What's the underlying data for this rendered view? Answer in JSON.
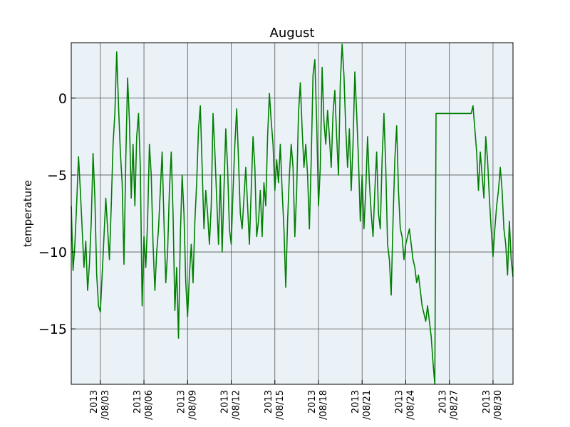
{
  "chart_data": {
    "type": "line",
    "title": "August",
    "xlabel": "",
    "ylabel": "temperature",
    "xlim": [
      "2013-08-01T00:00",
      "2013-08-31T09:00"
    ],
    "ylim": [
      -18.6,
      3.6
    ],
    "yticks": [
      0,
      -5,
      -10,
      -15
    ],
    "ytick_labels": [
      "0",
      "−5",
      "−10",
      "−15"
    ],
    "xticks": [
      "2013-08-03",
      "2013-08-06",
      "2013-08-09",
      "2013-08-12",
      "2013-08-15",
      "2013-08-18",
      "2013-08-21",
      "2013-08-24",
      "2013-08-27",
      "2013-08-30"
    ],
    "xtick_labels": [
      [
        "2013",
        "/08/03"
      ],
      [
        "2013",
        "/08/06"
      ],
      [
        "2013",
        "/08/09"
      ],
      [
        "2013",
        "/08/12"
      ],
      [
        "2013",
        "/08/15"
      ],
      [
        "2013",
        "/08/18"
      ],
      [
        "2013",
        "/08/21"
      ],
      [
        "2013",
        "/08/24"
      ],
      [
        "2013",
        "/08/27"
      ],
      [
        "2013",
        "/08/30"
      ]
    ],
    "grid": true,
    "background_color": "#eaf2f8",
    "series": [
      {
        "color": "#007f00",
        "points": [
          [
            "2013-08-01T00:00",
            -7.0
          ],
          [
            "2013-08-01T03:00",
            -11.2
          ],
          [
            "2013-08-01T06:00",
            -9.5
          ],
          [
            "2013-08-01T09:00",
            -6.8
          ],
          [
            "2013-08-01T12:00",
            -3.8
          ],
          [
            "2013-08-01T15:00",
            -6.0
          ],
          [
            "2013-08-01T18:00",
            -8.5
          ],
          [
            "2013-08-01T21:00",
            -11.0
          ],
          [
            "2013-08-02T00:00",
            -9.3
          ],
          [
            "2013-08-02T03:00",
            -12.5
          ],
          [
            "2013-08-02T06:00",
            -10.8
          ],
          [
            "2013-08-02T09:00",
            -8.0
          ],
          [
            "2013-08-02T12:00",
            -3.6
          ],
          [
            "2013-08-02T15:00",
            -6.5
          ],
          [
            "2013-08-02T18:00",
            -11.5
          ],
          [
            "2013-08-02T21:00",
            -13.5
          ],
          [
            "2013-08-03T00:00",
            -13.9
          ],
          [
            "2013-08-03T03:00",
            -11.5
          ],
          [
            "2013-08-03T06:00",
            -9.0
          ],
          [
            "2013-08-03T09:00",
            -6.5
          ],
          [
            "2013-08-03T12:00",
            -8.5
          ],
          [
            "2013-08-03T15:00",
            -10.5
          ],
          [
            "2013-08-03T18:00",
            -7.0
          ],
          [
            "2013-08-03T21:00",
            -3.0
          ],
          [
            "2013-08-04T00:00",
            -1.0
          ],
          [
            "2013-08-04T03:00",
            3.0
          ],
          [
            "2013-08-04T06:00",
            -0.5
          ],
          [
            "2013-08-04T09:00",
            -3.5
          ],
          [
            "2013-08-04T12:00",
            -5.5
          ],
          [
            "2013-08-04T15:00",
            -10.8
          ],
          [
            "2013-08-04T18:00",
            -4.0
          ],
          [
            "2013-08-04T21:00",
            1.3
          ],
          [
            "2013-08-05T00:00",
            -1.5
          ],
          [
            "2013-08-05T03:00",
            -6.5
          ],
          [
            "2013-08-05T06:00",
            -3.0
          ],
          [
            "2013-08-05T09:00",
            -7.0
          ],
          [
            "2013-08-05T12:00",
            -2.5
          ],
          [
            "2013-08-05T15:00",
            -1.0
          ],
          [
            "2013-08-05T18:00",
            -4.5
          ],
          [
            "2013-08-05T21:00",
            -13.5
          ],
          [
            "2013-08-06T00:00",
            -9.0
          ],
          [
            "2013-08-06T03:00",
            -11.0
          ],
          [
            "2013-08-06T06:00",
            -8.0
          ],
          [
            "2013-08-06T09:00",
            -3.0
          ],
          [
            "2013-08-06T12:00",
            -5.0
          ],
          [
            "2013-08-06T15:00",
            -9.5
          ],
          [
            "2013-08-06T18:00",
            -12.5
          ],
          [
            "2013-08-06T21:00",
            -10.0
          ],
          [
            "2013-08-07T00:00",
            -8.5
          ],
          [
            "2013-08-07T03:00",
            -6.0
          ],
          [
            "2013-08-07T06:00",
            -3.5
          ],
          [
            "2013-08-07T09:00",
            -8.0
          ],
          [
            "2013-08-07T12:00",
            -12.0
          ],
          [
            "2013-08-07T15:00",
            -10.0
          ],
          [
            "2013-08-07T18:00",
            -6.0
          ],
          [
            "2013-08-07T21:00",
            -3.5
          ],
          [
            "2013-08-08T00:00",
            -7.5
          ],
          [
            "2013-08-08T03:00",
            -13.8
          ],
          [
            "2013-08-08T06:00",
            -11.0
          ],
          [
            "2013-08-08T09:00",
            -15.6
          ],
          [
            "2013-08-08T12:00",
            -9.0
          ],
          [
            "2013-08-08T15:00",
            -5.0
          ],
          [
            "2013-08-08T18:00",
            -7.5
          ],
          [
            "2013-08-08T21:00",
            -12.0
          ],
          [
            "2013-08-09T00:00",
            -14.2
          ],
          [
            "2013-08-09T03:00",
            -11.5
          ],
          [
            "2013-08-09T06:00",
            -9.5
          ],
          [
            "2013-08-09T09:00",
            -12.0
          ],
          [
            "2013-08-09T12:00",
            -8.0
          ],
          [
            "2013-08-09T15:00",
            -5.5
          ],
          [
            "2013-08-09T18:00",
            -2.0
          ],
          [
            "2013-08-09T21:00",
            -0.5
          ],
          [
            "2013-08-10T00:00",
            -4.5
          ],
          [
            "2013-08-10T03:00",
            -8.5
          ],
          [
            "2013-08-10T06:00",
            -6.0
          ],
          [
            "2013-08-10T09:00",
            -7.5
          ],
          [
            "2013-08-10T12:00",
            -9.5
          ],
          [
            "2013-08-10T15:00",
            -7.0
          ],
          [
            "2013-08-10T18:00",
            -1.0
          ],
          [
            "2013-08-10T21:00",
            -3.5
          ],
          [
            "2013-08-11T00:00",
            -6.5
          ],
          [
            "2013-08-11T03:00",
            -9.5
          ],
          [
            "2013-08-11T06:00",
            -5.0
          ],
          [
            "2013-08-11T09:00",
            -10.0
          ],
          [
            "2013-08-11T12:00",
            -6.0
          ],
          [
            "2013-08-11T15:00",
            -2.0
          ],
          [
            "2013-08-11T18:00",
            -4.5
          ],
          [
            "2013-08-11T21:00",
            -8.5
          ],
          [
            "2013-08-12T00:00",
            -9.5
          ],
          [
            "2013-08-12T03:00",
            -6.0
          ],
          [
            "2013-08-12T06:00",
            -3.0
          ],
          [
            "2013-08-12T09:00",
            -0.7
          ],
          [
            "2013-08-12T12:00",
            -4.0
          ],
          [
            "2013-08-12T15:00",
            -7.5
          ],
          [
            "2013-08-12T18:00",
            -8.5
          ],
          [
            "2013-08-12T21:00",
            -6.5
          ],
          [
            "2013-08-13T00:00",
            -4.5
          ],
          [
            "2013-08-13T03:00",
            -7.0
          ],
          [
            "2013-08-13T06:00",
            -9.5
          ],
          [
            "2013-08-13T09:00",
            -6.0
          ],
          [
            "2013-08-13T12:00",
            -2.5
          ],
          [
            "2013-08-13T15:00",
            -4.5
          ],
          [
            "2013-08-13T18:00",
            -9.0
          ],
          [
            "2013-08-13T21:00",
            -8.0
          ],
          [
            "2013-08-14T00:00",
            -6.0
          ],
          [
            "2013-08-14T03:00",
            -9.0
          ],
          [
            "2013-08-14T06:00",
            -5.5
          ],
          [
            "2013-08-14T09:00",
            -7.0
          ],
          [
            "2013-08-14T12:00",
            -2.5
          ],
          [
            "2013-08-14T15:00",
            0.3
          ],
          [
            "2013-08-14T18:00",
            -1.5
          ],
          [
            "2013-08-14T21:00",
            -3.0
          ],
          [
            "2013-08-15T00:00",
            -6.0
          ],
          [
            "2013-08-15T03:00",
            -4.0
          ],
          [
            "2013-08-15T06:00",
            -5.5
          ],
          [
            "2013-08-15T09:00",
            -3.0
          ],
          [
            "2013-08-15T12:00",
            -6.0
          ],
          [
            "2013-08-15T15:00",
            -8.5
          ],
          [
            "2013-08-15T18:00",
            -12.3
          ],
          [
            "2013-08-15T21:00",
            -8.0
          ],
          [
            "2013-08-16T00:00",
            -5.0
          ],
          [
            "2013-08-16T03:00",
            -3.0
          ],
          [
            "2013-08-16T06:00",
            -4.5
          ],
          [
            "2013-08-16T09:00",
            -9.0
          ],
          [
            "2013-08-16T12:00",
            -6.0
          ],
          [
            "2013-08-16T15:00",
            -1.0
          ],
          [
            "2013-08-16T18:00",
            1.0
          ],
          [
            "2013-08-16T21:00",
            -2.0
          ],
          [
            "2013-08-17T00:00",
            -4.5
          ],
          [
            "2013-08-17T03:00",
            -3.0
          ],
          [
            "2013-08-17T06:00",
            -5.0
          ],
          [
            "2013-08-17T09:00",
            -8.5
          ],
          [
            "2013-08-17T12:00",
            -4.0
          ],
          [
            "2013-08-17T15:00",
            1.5
          ],
          [
            "2013-08-17T18:00",
            2.5
          ],
          [
            "2013-08-17T21:00",
            -1.5
          ],
          [
            "2013-08-18T00:00",
            -7.0
          ],
          [
            "2013-08-18T03:00",
            -4.5
          ],
          [
            "2013-08-18T06:00",
            2.0
          ],
          [
            "2013-08-18T09:00",
            -1.5
          ],
          [
            "2013-08-18T12:00",
            -3.0
          ],
          [
            "2013-08-18T15:00",
            -0.8
          ],
          [
            "2013-08-18T18:00",
            -2.5
          ],
          [
            "2013-08-18T21:00",
            -4.5
          ],
          [
            "2013-08-19T00:00",
            -1.0
          ],
          [
            "2013-08-19T03:00",
            0.5
          ],
          [
            "2013-08-19T06:00",
            -2.5
          ],
          [
            "2013-08-19T09:00",
            -5.0
          ],
          [
            "2013-08-19T12:00",
            1.0
          ],
          [
            "2013-08-19T15:00",
            3.5
          ],
          [
            "2013-08-19T18:00",
            1.5
          ],
          [
            "2013-08-19T21:00",
            -2.0
          ],
          [
            "2013-08-20T00:00",
            -4.5
          ],
          [
            "2013-08-20T03:00",
            -2.0
          ],
          [
            "2013-08-20T06:00",
            -6.0
          ],
          [
            "2013-08-20T09:00",
            -3.0
          ],
          [
            "2013-08-20T12:00",
            1.7
          ],
          [
            "2013-08-20T15:00",
            -1.0
          ],
          [
            "2013-08-20T18:00",
            -4.0
          ],
          [
            "2013-08-20T21:00",
            -8.0
          ],
          [
            "2013-08-21T00:00",
            -5.0
          ],
          [
            "2013-08-21T03:00",
            -8.5
          ],
          [
            "2013-08-21T06:00",
            -6.0
          ],
          [
            "2013-08-21T09:00",
            -2.5
          ],
          [
            "2013-08-21T12:00",
            -5.5
          ],
          [
            "2013-08-21T15:00",
            -7.5
          ],
          [
            "2013-08-21T18:00",
            -9.0
          ],
          [
            "2013-08-21T21:00",
            -6.0
          ],
          [
            "2013-08-22T00:00",
            -3.5
          ],
          [
            "2013-08-22T03:00",
            -7.5
          ],
          [
            "2013-08-22T06:00",
            -8.5
          ],
          [
            "2013-08-22T09:00",
            -4.0
          ],
          [
            "2013-08-22T12:00",
            -1.0
          ],
          [
            "2013-08-22T15:00",
            -4.5
          ],
          [
            "2013-08-22T18:00",
            -9.5
          ],
          [
            "2013-08-22T21:00",
            -10.5
          ],
          [
            "2013-08-23T00:00",
            -12.8
          ],
          [
            "2013-08-23T03:00",
            -8.0
          ],
          [
            "2013-08-23T06:00",
            -4.0
          ],
          [
            "2013-08-23T09:00",
            -1.8
          ],
          [
            "2013-08-23T12:00",
            -6.0
          ],
          [
            "2013-08-23T15:00",
            -8.5
          ],
          [
            "2013-08-23T18:00",
            -9.0
          ],
          [
            "2013-08-23T21:00",
            -10.5
          ],
          [
            "2013-08-24T00:00",
            -9.5
          ],
          [
            "2013-08-24T03:00",
            -9.0
          ],
          [
            "2013-08-24T06:00",
            -8.5
          ],
          [
            "2013-08-24T09:00",
            -9.5
          ],
          [
            "2013-08-24T12:00",
            -10.5
          ],
          [
            "2013-08-24T15:00",
            -11.0
          ],
          [
            "2013-08-24T18:00",
            -12.0
          ],
          [
            "2013-08-24T21:00",
            -11.5
          ],
          [
            "2013-08-25T00:00",
            -12.5
          ],
          [
            "2013-08-25T03:00",
            -13.5
          ],
          [
            "2013-08-25T06:00",
            -14.0
          ],
          [
            "2013-08-25T09:00",
            -14.5
          ],
          [
            "2013-08-25T12:00",
            -13.5
          ],
          [
            "2013-08-25T15:00",
            -14.5
          ],
          [
            "2013-08-25T18:00",
            -15.5
          ],
          [
            "2013-08-25T21:00",
            -17.2
          ],
          [
            "2013-08-26T00:00",
            -18.6
          ],
          [
            "2013-08-26T02:00",
            -1.0
          ],
          [
            "2013-08-28T12:00",
            -1.0
          ],
          [
            "2013-08-28T15:00",
            -0.5
          ],
          [
            "2013-08-28T18:00",
            -2.0
          ],
          [
            "2013-08-28T21:00",
            -3.5
          ],
          [
            "2013-08-29T00:00",
            -6.0
          ],
          [
            "2013-08-29T03:00",
            -3.5
          ],
          [
            "2013-08-29T06:00",
            -5.0
          ],
          [
            "2013-08-29T09:00",
            -6.5
          ],
          [
            "2013-08-29T12:00",
            -2.5
          ],
          [
            "2013-08-29T15:00",
            -4.0
          ],
          [
            "2013-08-29T18:00",
            -6.5
          ],
          [
            "2013-08-29T21:00",
            -8.5
          ],
          [
            "2013-08-30T00:00",
            -10.3
          ],
          [
            "2013-08-30T03:00",
            -8.5
          ],
          [
            "2013-08-30T06:00",
            -7.0
          ],
          [
            "2013-08-30T09:00",
            -6.0
          ],
          [
            "2013-08-30T12:00",
            -4.5
          ],
          [
            "2013-08-30T15:00",
            -6.0
          ],
          [
            "2013-08-30T18:00",
            -8.5
          ],
          [
            "2013-08-30T21:00",
            -9.5
          ],
          [
            "2013-08-31T00:00",
            -11.5
          ],
          [
            "2013-08-31T03:00",
            -8.0
          ],
          [
            "2013-08-31T06:00",
            -10.5
          ],
          [
            "2013-08-31T09:00",
            -11.6
          ]
        ]
      }
    ]
  }
}
